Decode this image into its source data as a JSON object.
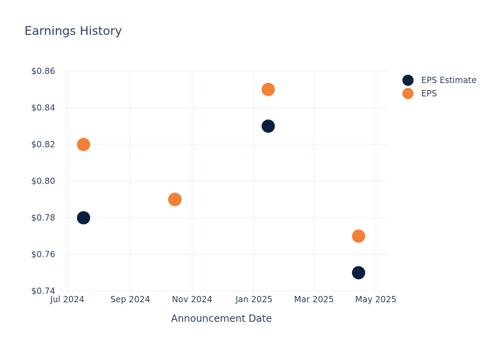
{
  "chart_data": {
    "type": "scatter",
    "title": "Earnings History",
    "xlabel": "Announcement Date",
    "ylabel": "",
    "x_ticks": [
      {
        "date": "2024-07-01",
        "label": "Jul 2024"
      },
      {
        "date": "2024-09-01",
        "label": "Sep 2024"
      },
      {
        "date": "2024-11-01",
        "label": "Nov 2024"
      },
      {
        "date": "2025-01-01",
        "label": "Jan 2025"
      },
      {
        "date": "2025-03-01",
        "label": "Mar 2025"
      },
      {
        "date": "2025-05-01",
        "label": "May 2025"
      }
    ],
    "xlim": [
      "2024-06-28",
      "2025-05-12"
    ],
    "y_ticks": [
      {
        "value": 0.74,
        "label": "$0.74"
      },
      {
        "value": 0.76,
        "label": "$0.76"
      },
      {
        "value": 0.78,
        "label": "$0.78"
      },
      {
        "value": 0.8,
        "label": "$0.80"
      },
      {
        "value": 0.82,
        "label": "$0.82"
      },
      {
        "value": 0.84,
        "label": "$0.84"
      },
      {
        "value": 0.86,
        "label": "$0.86"
      }
    ],
    "ylim": [
      0.74,
      0.86
    ],
    "grid": true,
    "legend_position": "top-right",
    "series": [
      {
        "name": "EPS Estimate",
        "color": "#0b1f3f",
        "points": [
          {
            "x": "2024-07-17",
            "y": 0.78
          },
          {
            "x": "2024-10-15",
            "y": 0.79
          },
          {
            "x": "2025-01-15",
            "y": 0.83
          },
          {
            "x": "2025-04-14",
            "y": 0.75
          }
        ]
      },
      {
        "name": "EPS",
        "color": "#f47f37",
        "points": [
          {
            "x": "2024-07-17",
            "y": 0.82
          },
          {
            "x": "2024-10-15",
            "y": 0.79
          },
          {
            "x": "2025-01-15",
            "y": 0.85
          },
          {
            "x": "2025-04-14",
            "y": 0.77
          }
        ]
      }
    ]
  }
}
